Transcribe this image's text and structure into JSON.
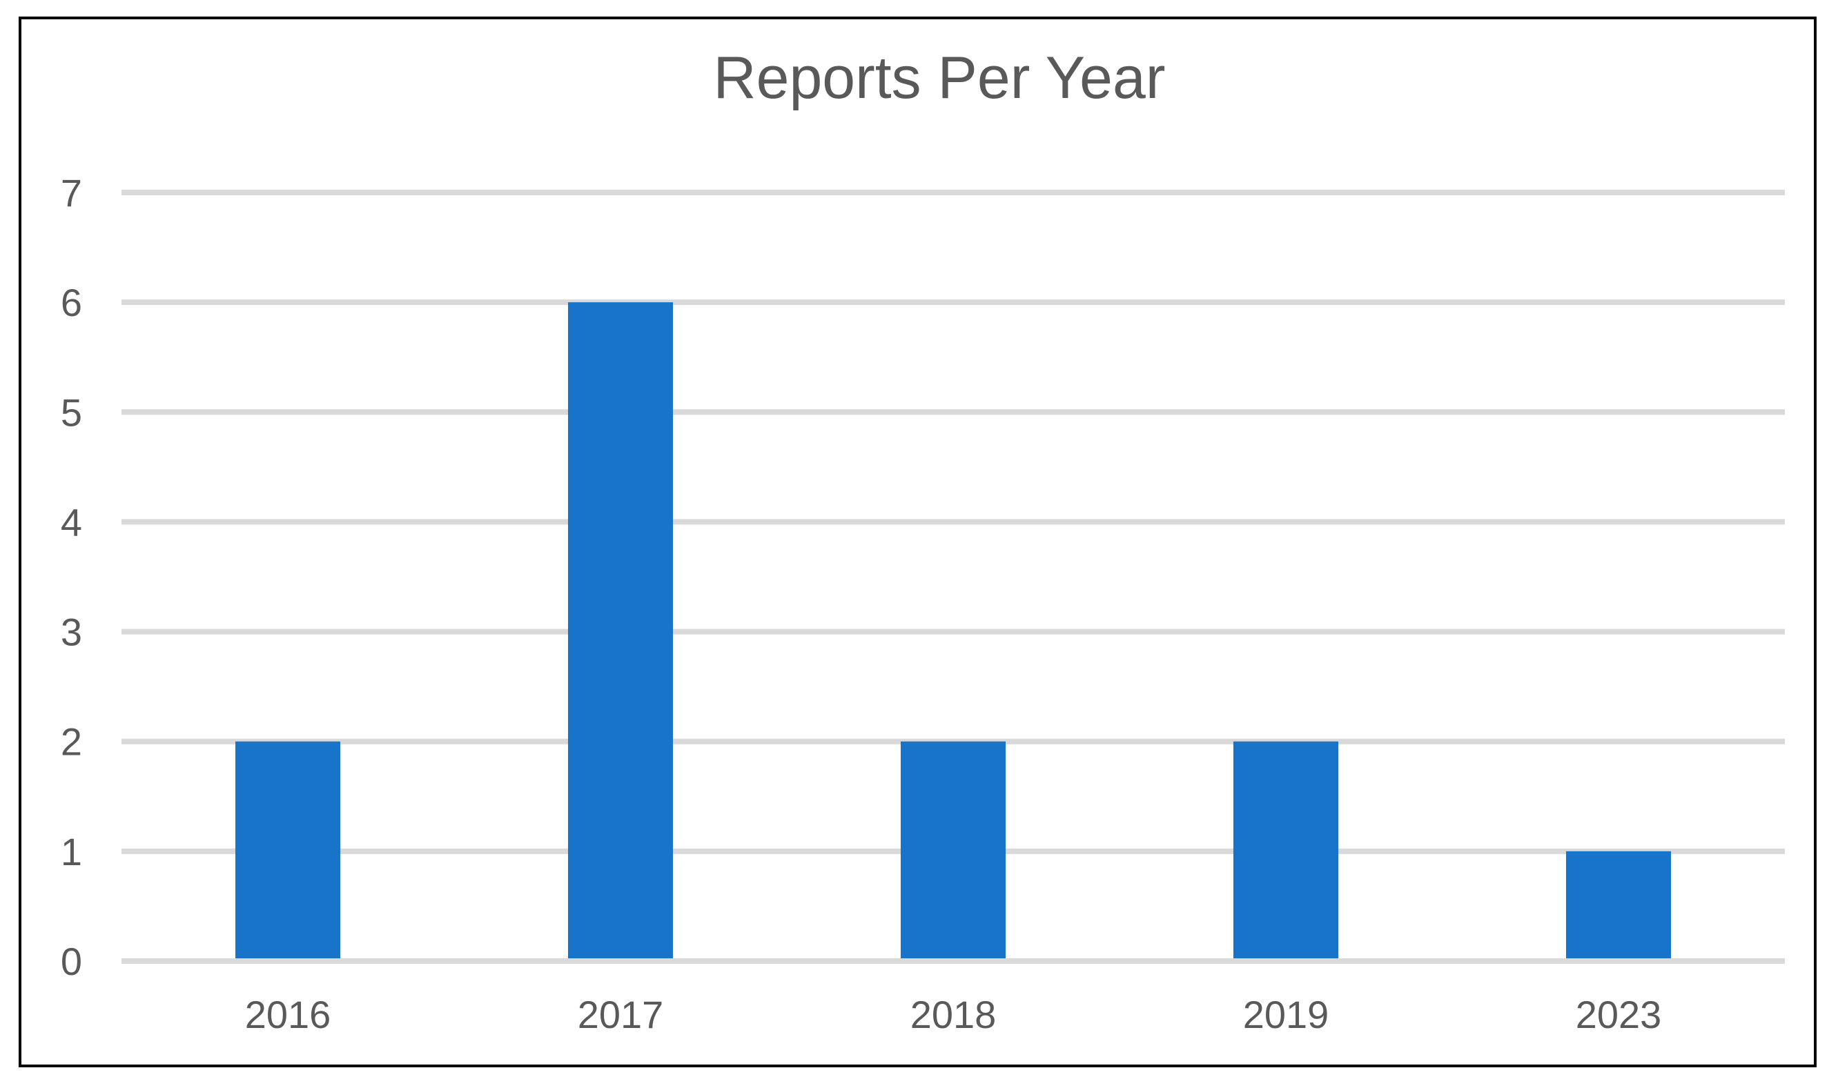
{
  "chart_data": {
    "type": "bar",
    "title": "Reports Per Year",
    "xlabel": "",
    "ylabel": "",
    "categories": [
      "2016",
      "2017",
      "2018",
      "2019",
      "2023"
    ],
    "values": [
      2,
      6,
      2,
      2,
      1
    ],
    "ylim": [
      0,
      7
    ],
    "yticks": [
      "0",
      "1",
      "2",
      "3",
      "4",
      "5",
      "6",
      "7"
    ],
    "grid": true,
    "legend": "none",
    "colors": {
      "bar": "#1874c8",
      "grid": "#d9d9d9",
      "text": "#595959",
      "frame": "#000000"
    }
  }
}
